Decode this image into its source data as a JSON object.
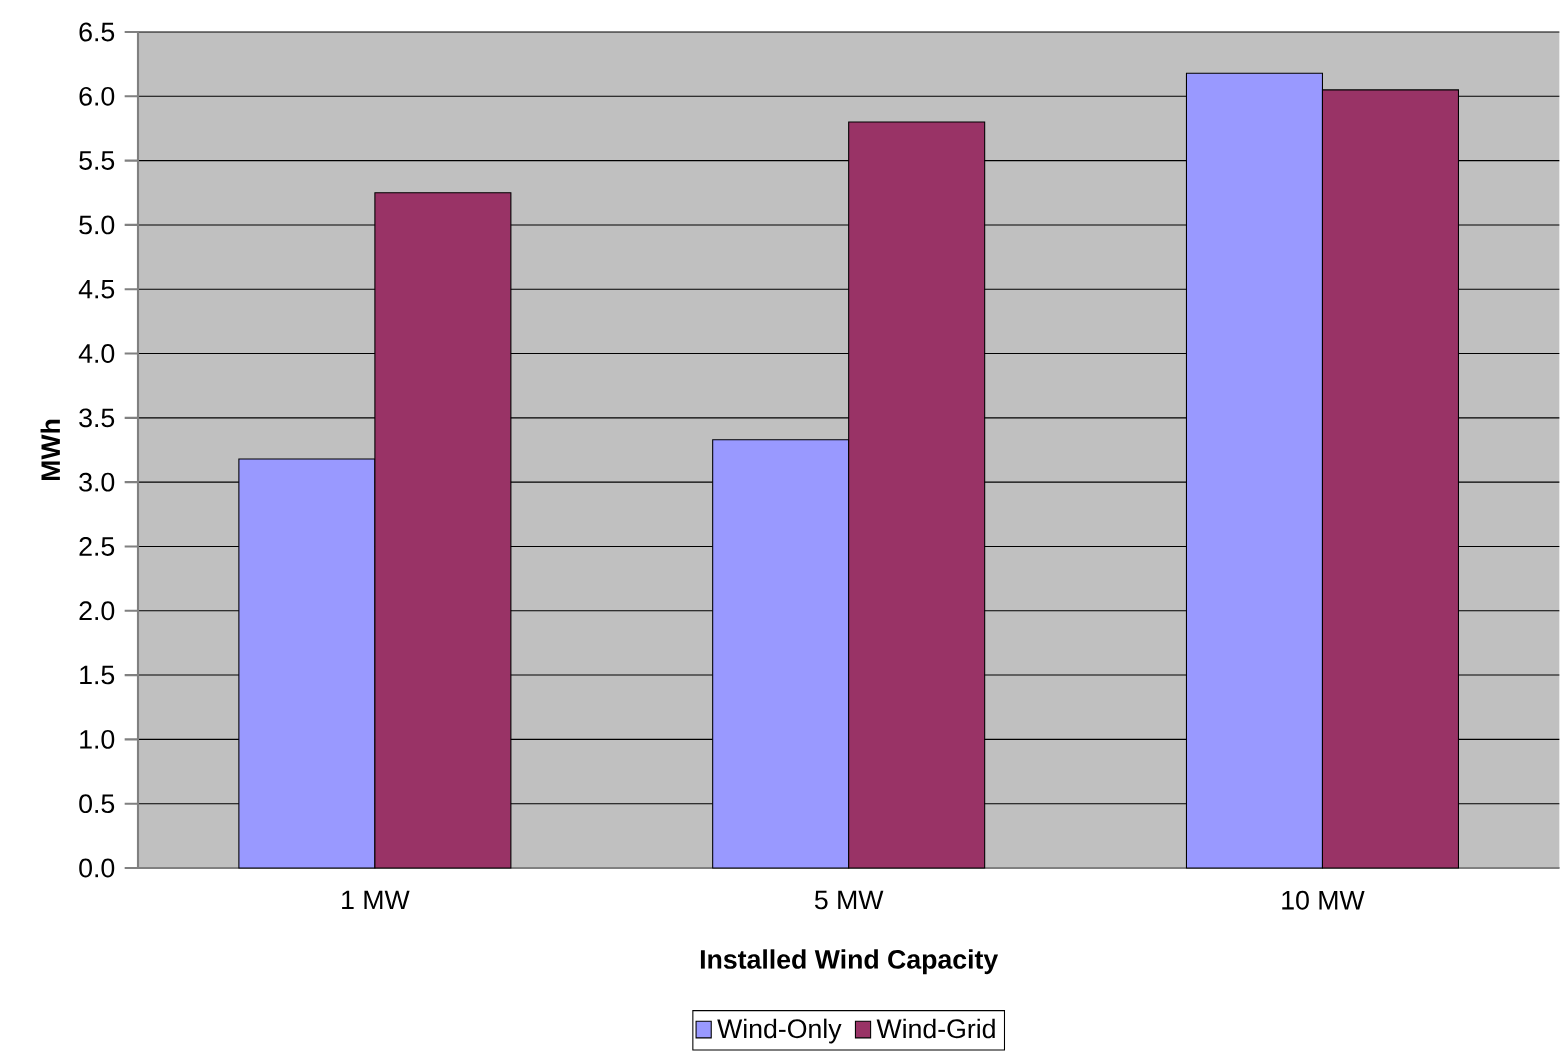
{
  "chart_data": {
    "type": "bar",
    "xlabel": "Installed Wind Capacity",
    "ylabel": "MWh",
    "categories": [
      "1 MW",
      "5 MW",
      "10 MW"
    ],
    "series": [
      {
        "name": "Wind-Only",
        "color": "#9999ff",
        "values": [
          3.18,
          3.33,
          6.18
        ]
      },
      {
        "name": "Wind-Grid",
        "color": "#993366",
        "values": [
          5.25,
          5.8,
          6.05
        ]
      }
    ],
    "ylim": [
      0,
      6.5
    ],
    "yticks": [
      {
        "value": 0,
        "label": "0.0"
      },
      0.5,
      {
        "value": 1,
        "label": "1.0"
      },
      1.5,
      {
        "value": 2,
        "label": "2.0"
      },
      2.5,
      {
        "value": 3,
        "label": "3.0"
      },
      3.5,
      {
        "value": 4,
        "label": "4.0"
      },
      4.5,
      {
        "value": 5,
        "label": "5.0"
      },
      5.5,
      {
        "value": 6,
        "label": "6.0"
      },
      6.5
    ],
    "grid": "y",
    "legend": "bottom"
  }
}
